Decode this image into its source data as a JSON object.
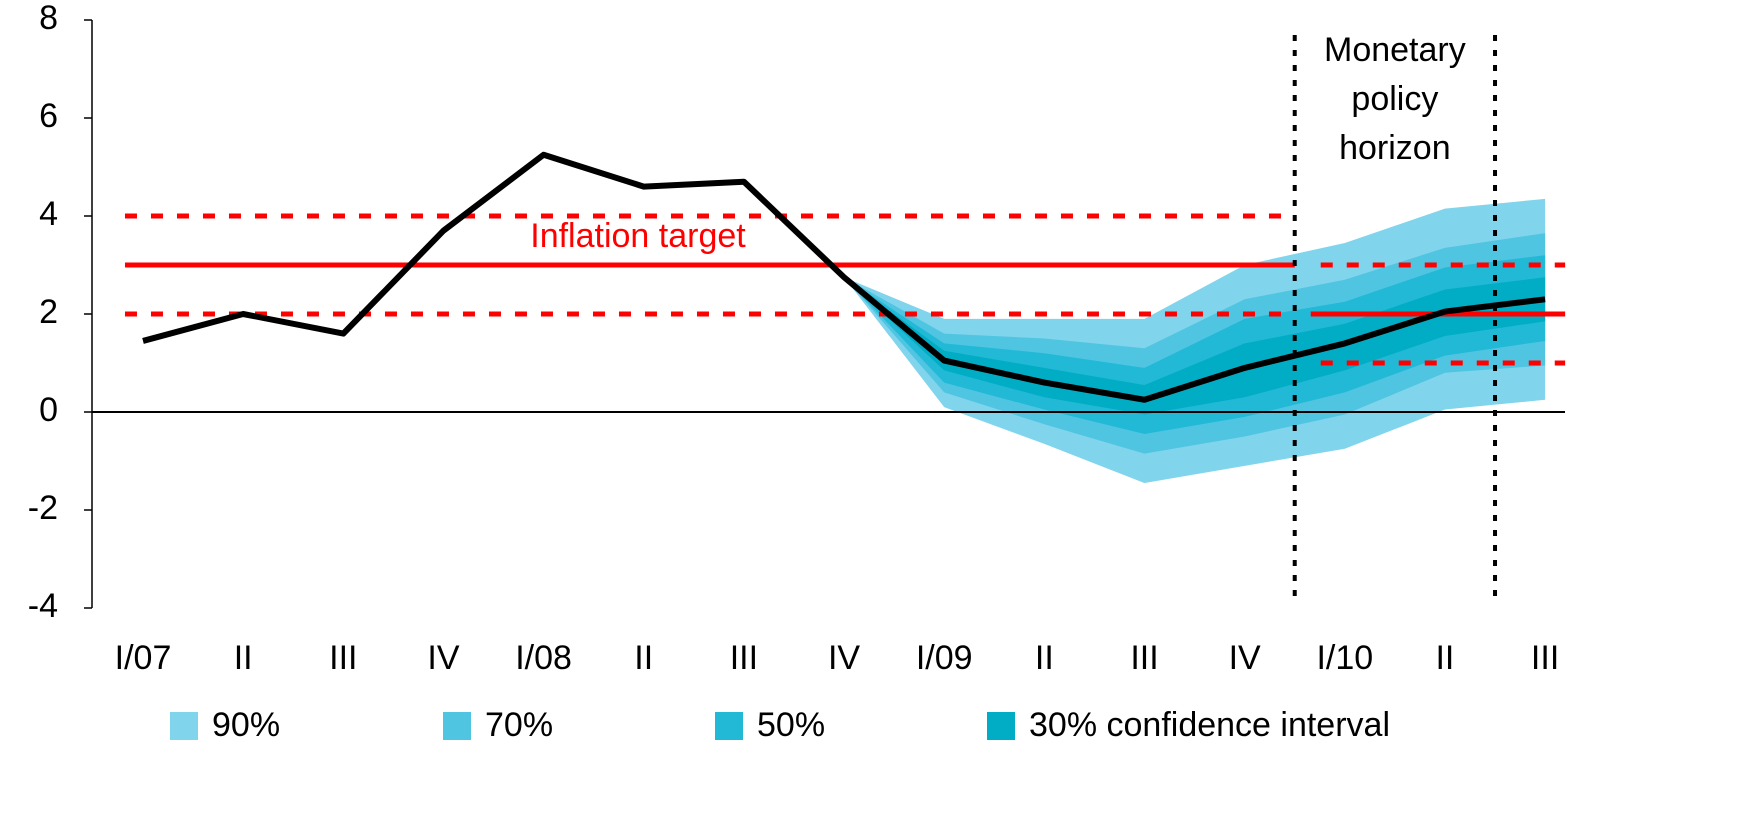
{
  "chart_data": {
    "type": "fan",
    "categories": [
      "I/07",
      "II",
      "III",
      "IV",
      "I/08",
      "II",
      "III",
      "IV",
      "I/09",
      "II",
      "III",
      "IV",
      "I/10",
      "II",
      "III"
    ],
    "values": [
      1.45,
      2.0,
      1.6,
      3.7,
      5.25,
      4.6,
      4.7,
      2.75,
      1.05,
      0.6,
      0.25,
      0.9,
      1.4,
      2.05,
      2.3
    ],
    "color": "#000000",
    "series": [
      {
        "name": "90%",
        "color": "#80d4ec",
        "upper": [
          null,
          null,
          null,
          null,
          null,
          null,
          null,
          2.75,
          1.9,
          1.9,
          1.9,
          3.0,
          3.45,
          4.15,
          4.35
        ],
        "lower": [
          null,
          null,
          null,
          null,
          null,
          null,
          null,
          2.75,
          0.1,
          -0.65,
          -1.45,
          -1.1,
          -0.75,
          0.05,
          0.25
        ]
      },
      {
        "name": "70%",
        "color": "#4fc5e2",
        "upper": [
          null,
          null,
          null,
          null,
          null,
          null,
          null,
          2.75,
          1.6,
          1.5,
          1.3,
          2.3,
          2.7,
          3.35,
          3.65
        ],
        "lower": [
          null,
          null,
          null,
          null,
          null,
          null,
          null,
          2.75,
          0.4,
          -0.25,
          -0.85,
          -0.5,
          -0.05,
          0.8,
          0.95
        ]
      },
      {
        "name": "50%",
        "color": "#22b9d6",
        "upper": [
          null,
          null,
          null,
          null,
          null,
          null,
          null,
          2.75,
          1.4,
          1.2,
          0.9,
          1.9,
          2.25,
          2.95,
          3.2
        ],
        "lower": [
          null,
          null,
          null,
          null,
          null,
          null,
          null,
          2.75,
          0.6,
          0.05,
          -0.45,
          -0.1,
          0.4,
          1.15,
          1.45
        ]
      },
      {
        "name": "30% confidence interval",
        "color": "#00adc4",
        "upper": [
          null,
          null,
          null,
          null,
          null,
          null,
          null,
          2.75,
          1.25,
          0.9,
          0.55,
          1.4,
          1.8,
          2.5,
          2.75
        ],
        "lower": [
          null,
          null,
          null,
          null,
          null,
          null,
          null,
          2.75,
          0.85,
          0.3,
          -0.05,
          0.3,
          0.85,
          1.55,
          1.85
        ]
      }
    ],
    "target_bands": [
      {
        "start": -0.18,
        "end": 11.5,
        "center": 3,
        "lower": 2,
        "upper": 4
      },
      {
        "start": 11.66,
        "end": 14.2,
        "center": 2,
        "lower": 1,
        "upper": 3
      }
    ],
    "target_color": "#ff0000",
    "target_label": "Inflation target",
    "policy_horizon": [
      11.5,
      13.5
    ],
    "horizon_label": [
      "Monetary",
      "policy",
      "horizon"
    ],
    "ylim": [
      -4,
      8
    ],
    "yticks": [
      -4,
      -2,
      0,
      2,
      4,
      6,
      8
    ]
  }
}
